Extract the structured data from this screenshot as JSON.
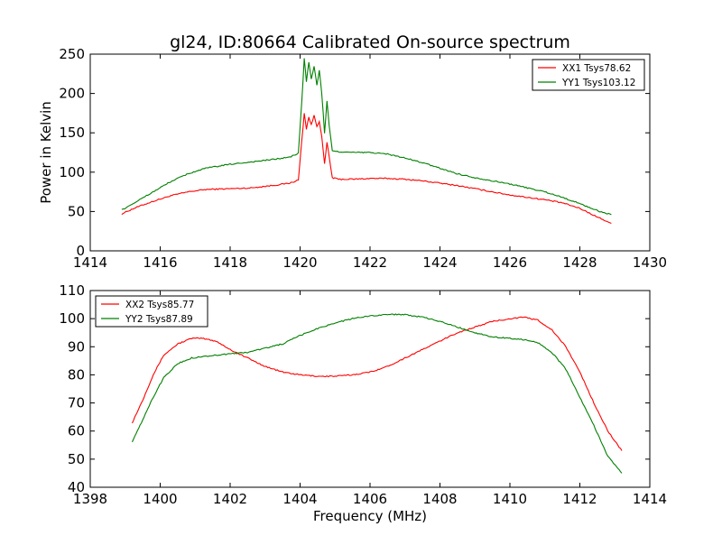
{
  "figure": {
    "title": "gl24, ID:80664 Calibrated On-source spectrum"
  },
  "chart_data": [
    {
      "type": "line",
      "title": "gl24, ID:80664 Calibrated On-source spectrum",
      "xlabel": "",
      "ylabel": "Power in Kelvin",
      "xlim": [
        1414,
        1430
      ],
      "ylim": [
        0,
        250
      ],
      "xticks": [
        "1414",
        "1416",
        "1418",
        "1420",
        "1422",
        "1424",
        "1426",
        "1428",
        "1430"
      ],
      "yticks": [
        "0",
        "50",
        "100",
        "150",
        "200",
        "250"
      ],
      "grid": false,
      "legend_position": "top-right",
      "series": [
        {
          "name": "XX1 Tsys78.62",
          "color": "#ff0000",
          "x": [
            1414.9,
            1415.3,
            1415.8,
            1416.3,
            1416.8,
            1417.3,
            1418.0,
            1418.6,
            1419.2,
            1419.7,
            1419.95,
            1420.05,
            1420.12,
            1420.18,
            1420.25,
            1420.32,
            1420.4,
            1420.48,
            1420.55,
            1420.62,
            1420.7,
            1420.77,
            1420.83,
            1420.92,
            1421.1,
            1421.5,
            1422.0,
            1422.5,
            1423.0,
            1423.5,
            1424.0,
            1424.5,
            1425.0,
            1425.5,
            1426.0,
            1426.5,
            1427.0,
            1427.5,
            1428.0,
            1428.5,
            1428.9
          ],
          "y": [
            47,
            55,
            63,
            70,
            75,
            78,
            79,
            80,
            83,
            86,
            90,
            140,
            175,
            155,
            170,
            160,
            172,
            158,
            165,
            145,
            110,
            138,
            120,
            93,
            91,
            91,
            92,
            92,
            91,
            89,
            86,
            83,
            79,
            75,
            71,
            68,
            65,
            61,
            54,
            43,
            35
          ]
        },
        {
          "name": "YY1 Tsys103.12",
          "color": "#008000",
          "x": [
            1414.9,
            1415.3,
            1415.8,
            1416.3,
            1416.8,
            1417.3,
            1418.0,
            1418.6,
            1419.2,
            1419.7,
            1419.95,
            1420.05,
            1420.12,
            1420.18,
            1420.25,
            1420.32,
            1420.4,
            1420.48,
            1420.55,
            1420.62,
            1420.7,
            1420.77,
            1420.83,
            1420.92,
            1421.1,
            1421.5,
            1422.0,
            1422.5,
            1423.0,
            1423.5,
            1424.0,
            1424.5,
            1425.0,
            1425.5,
            1426.0,
            1426.5,
            1427.0,
            1427.5,
            1428.0,
            1428.5,
            1428.9
          ],
          "y": [
            52,
            62,
            75,
            88,
            98,
            105,
            110,
            113,
            116,
            119,
            124,
            190,
            245,
            215,
            240,
            218,
            235,
            210,
            230,
            200,
            150,
            190,
            160,
            127,
            126,
            125,
            125,
            123,
            118,
            112,
            105,
            98,
            93,
            89,
            85,
            80,
            75,
            68,
            60,
            51,
            46
          ]
        }
      ]
    },
    {
      "type": "line",
      "title": "",
      "xlabel": "Frequency (MHz)",
      "ylabel": "",
      "xlim": [
        1398,
        1414
      ],
      "ylim": [
        40,
        110
      ],
      "xticks": [
        "1398",
        "1400",
        "1402",
        "1404",
        "1406",
        "1408",
        "1410",
        "1412",
        "1414"
      ],
      "yticks": [
        "40",
        "50",
        "60",
        "70",
        "80",
        "90",
        "100",
        "110"
      ],
      "grid": false,
      "legend_position": "top-left",
      "series": [
        {
          "name": "XX2 Tsys85.77",
          "color": "#ff0000",
          "x": [
            1399.2,
            1399.5,
            1399.8,
            1400.1,
            1400.5,
            1400.9,
            1401.2,
            1401.6,
            1402.0,
            1402.5,
            1403.0,
            1403.5,
            1404.0,
            1404.5,
            1405.0,
            1405.5,
            1406.0,
            1406.5,
            1407.0,
            1407.5,
            1408.0,
            1408.5,
            1409.0,
            1409.5,
            1410.0,
            1410.4,
            1410.8,
            1411.2,
            1411.6,
            1412.0,
            1412.4,
            1412.8,
            1413.2
          ],
          "y": [
            63,
            71,
            80,
            87,
            91,
            93,
            93,
            92,
            89,
            86,
            83,
            81,
            80,
            79.5,
            79.5,
            80,
            81,
            83,
            86,
            89,
            92,
            95,
            97,
            99,
            100,
            100.5,
            99.5,
            96,
            90,
            81,
            70,
            60,
            53
          ]
        },
        {
          "name": "YY2 Tsys87.89",
          "color": "#008000",
          "x": [
            1399.2,
            1399.5,
            1399.8,
            1400.1,
            1400.5,
            1400.9,
            1401.2,
            1401.6,
            1402.0,
            1402.5,
            1403.0,
            1403.5,
            1404.0,
            1404.5,
            1405.0,
            1405.5,
            1406.0,
            1406.5,
            1407.0,
            1407.5,
            1408.0,
            1408.5,
            1409.0,
            1409.5,
            1410.0,
            1410.4,
            1410.8,
            1411.2,
            1411.6,
            1412.0,
            1412.4,
            1412.8,
            1413.2
          ],
          "y": [
            56,
            64,
            72,
            79,
            84,
            86,
            86.5,
            87,
            87.5,
            88,
            89.5,
            91,
            94,
            96.5,
            98.5,
            100,
            101,
            101.5,
            101.5,
            100.5,
            99,
            97,
            95,
            93.5,
            93,
            92.5,
            91.5,
            88,
            82,
            72,
            62,
            51,
            45
          ]
        }
      ]
    }
  ]
}
